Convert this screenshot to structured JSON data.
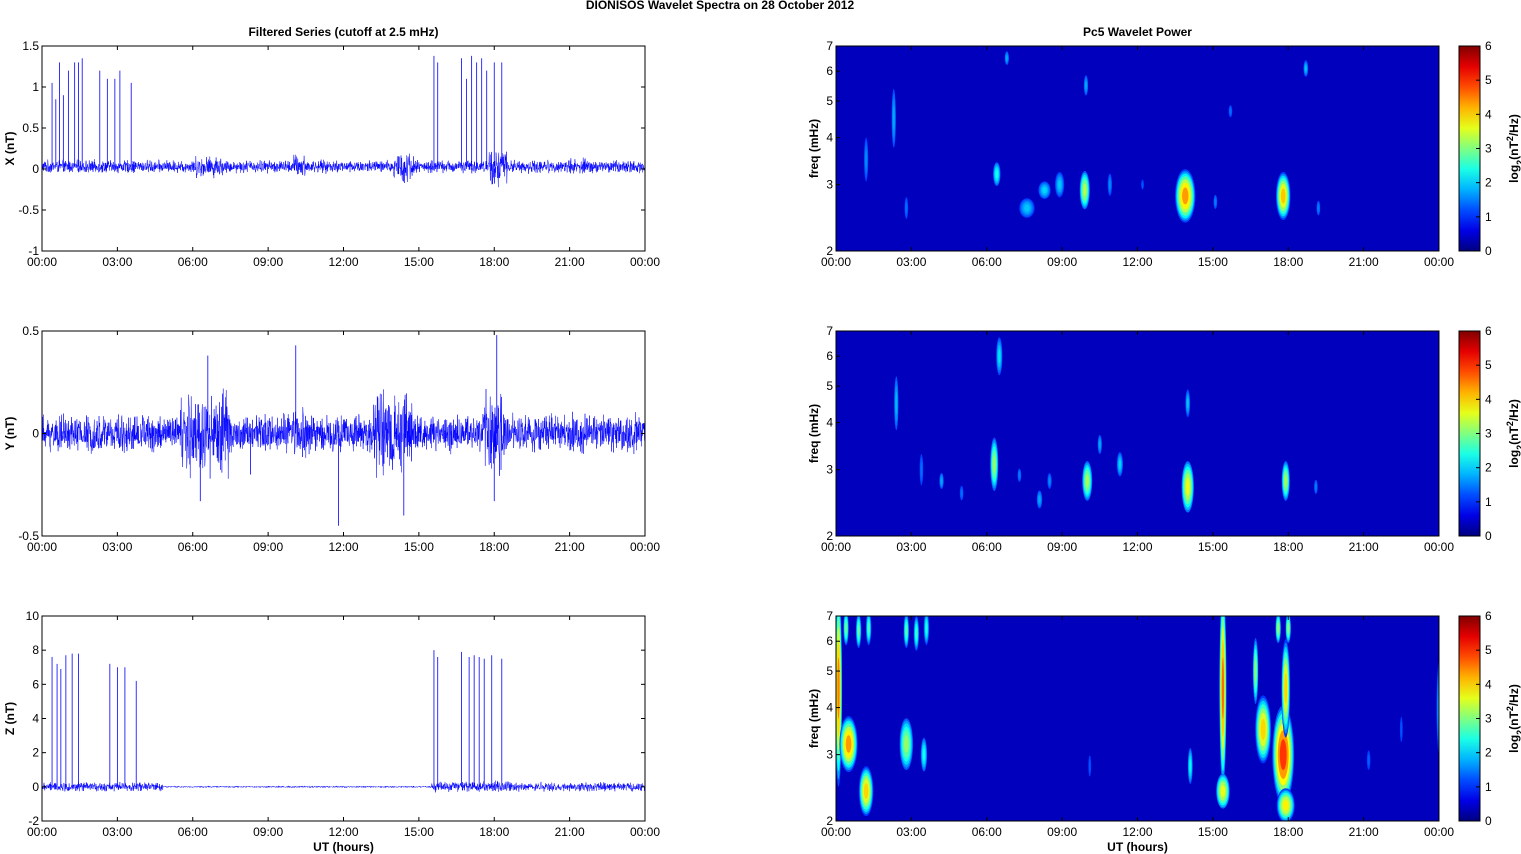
{
  "figure_title": "DIONISOS Wavelet Spectra on 28 October   2012",
  "colors": {
    "trace": "#0000ff",
    "frame": "#000000",
    "background": "#00008f"
  },
  "chart_data": [
    {
      "type": "line",
      "title": "Filtered Series (cutoff at 2.5 mHz)",
      "ylabel": "X (nT)",
      "xlabel": "",
      "x_ticks": [
        "00:00",
        "03:00",
        "06:00",
        "09:00",
        "12:00",
        "15:00",
        "18:00",
        "21:00",
        "00:00"
      ],
      "y_ticks": [
        "1.5",
        "1",
        "0.5",
        "0",
        "-0.5",
        "-1"
      ],
      "xlim_hours": [
        0,
        24
      ],
      "ylim": [
        -1,
        1.5
      ],
      "series": [
        {
          "color": "#0000ff",
          "baseline": 0.03,
          "noise_amplitude": 0.06,
          "bursts": [
            [
              6.0,
              7.2,
              0.1
            ],
            [
              10.0,
              10.5,
              0.12
            ],
            [
              14.0,
              14.8,
              0.15
            ],
            [
              17.8,
              18.5,
              0.18
            ],
            [
              21.0,
              21.7,
              0.08
            ]
          ],
          "spikes": [
            [
              0.4,
              1.05
            ],
            [
              0.55,
              0.85
            ],
            [
              0.7,
              1.3
            ],
            [
              0.85,
              0.9
            ],
            [
              1.05,
              1.2
            ],
            [
              1.3,
              1.3
            ],
            [
              1.45,
              1.3
            ],
            [
              1.6,
              1.35
            ],
            [
              2.3,
              1.2
            ],
            [
              2.6,
              1.1
            ],
            [
              2.9,
              1.1
            ],
            [
              3.1,
              1.2
            ],
            [
              3.55,
              1.05
            ],
            [
              15.6,
              1.38
            ],
            [
              15.75,
              1.3
            ],
            [
              16.7,
              1.35
            ],
            [
              16.9,
              1.1
            ],
            [
              17.1,
              1.38
            ],
            [
              17.3,
              1.3
            ],
            [
              17.5,
              1.35
            ],
            [
              17.7,
              1.2
            ],
            [
              18.0,
              1.3
            ],
            [
              18.3,
              1.3
            ]
          ]
        }
      ]
    },
    {
      "type": "line",
      "title": "",
      "ylabel": "Y (nT)",
      "xlabel": "",
      "x_ticks": [
        "00:00",
        "03:00",
        "06:00",
        "09:00",
        "12:00",
        "15:00",
        "18:00",
        "21:00",
        "00:00"
      ],
      "y_ticks": [
        "0.5",
        "0",
        "-0.5"
      ],
      "xlim_hours": [
        0,
        24
      ],
      "ylim": [
        -0.5,
        0.5
      ],
      "series": [
        {
          "color": "#0000ff",
          "baseline": 0.0,
          "noise_amplitude": 0.07,
          "bursts": [
            [
              5.5,
              7.5,
              0.16
            ],
            [
              10.0,
              10.8,
              0.12
            ],
            [
              13.2,
              14.8,
              0.15
            ],
            [
              17.6,
              18.4,
              0.16
            ],
            [
              21.0,
              21.8,
              0.08
            ]
          ],
          "spikes": [
            [
              6.3,
              -0.33
            ],
            [
              6.6,
              0.38
            ],
            [
              8.3,
              -0.2
            ],
            [
              10.1,
              0.43
            ],
            [
              11.8,
              -0.45
            ],
            [
              14.4,
              -0.4
            ],
            [
              18.1,
              0.48
            ],
            [
              18.0,
              -0.33
            ]
          ]
        }
      ]
    },
    {
      "type": "line",
      "title": "",
      "ylabel": "Z (nT)",
      "xlabel": "UT (hours)",
      "x_ticks": [
        "00:00",
        "03:00",
        "06:00",
        "09:00",
        "12:00",
        "15:00",
        "18:00",
        "21:00",
        "00:00"
      ],
      "y_ticks": [
        "10",
        "8",
        "6",
        "4",
        "2",
        "0",
        "-2"
      ],
      "xlim_hours": [
        0,
        24
      ],
      "ylim": [
        -2,
        10
      ],
      "series": [
        {
          "color": "#0000ff",
          "baseline": 0.0,
          "noise_amplitude": 0.2,
          "quiet_interval": [
            4.8,
            15.5
          ],
          "quiet_amplitude": 0.04,
          "bursts": [
            [
              15.5,
              18.6,
              0.25
            ]
          ],
          "spikes": [
            [
              0.4,
              7.6
            ],
            [
              0.6,
              7.2
            ],
            [
              0.75,
              6.9
            ],
            [
              0.95,
              7.7
            ],
            [
              1.2,
              7.8
            ],
            [
              1.45,
              7.8
            ],
            [
              2.7,
              7.2
            ],
            [
              3.0,
              7.0
            ],
            [
              3.3,
              7.0
            ],
            [
              3.75,
              6.2
            ],
            [
              15.6,
              8.0
            ],
            [
              15.75,
              7.6
            ],
            [
              16.7,
              7.9
            ],
            [
              17.0,
              7.6
            ],
            [
              17.2,
              7.7
            ],
            [
              17.4,
              7.6
            ],
            [
              17.6,
              7.5
            ],
            [
              17.9,
              7.7
            ],
            [
              18.3,
              7.5
            ]
          ]
        }
      ]
    },
    {
      "type": "heatmap",
      "title": "Pc5 Wavelet Power",
      "ylabel": "freq (mHz)",
      "xlabel": "",
      "x_ticks": [
        "00:00",
        "03:00",
        "06:00",
        "09:00",
        "12:00",
        "15:00",
        "18:00",
        "21:00",
        "00:00"
      ],
      "y_ticks": [
        "7",
        "6",
        "5",
        "4",
        "3",
        "2"
      ],
      "xlim_hours": [
        0,
        24
      ],
      "ylim_mHz": [
        2,
        7
      ],
      "y_scale": "log",
      "colorbar": {
        "label": "log2(nT2/Hz)",
        "ticks": [
          "6",
          "5",
          "4",
          "3",
          "2",
          "1",
          "0"
        ],
        "range": [
          0,
          6
        ],
        "colormap": "jet"
      },
      "blobs": [
        [
          1.2,
          3.5,
          0.07,
          0.7,
          1.4
        ],
        [
          2.3,
          4.5,
          0.07,
          1.2,
          1.6
        ],
        [
          2.8,
          2.6,
          0.06,
          0.3,
          1.2
        ],
        [
          6.4,
          3.2,
          0.12,
          0.3,
          2.3
        ],
        [
          6.8,
          6.5,
          0.06,
          0.4,
          1.6
        ],
        [
          7.6,
          2.6,
          0.25,
          0.2,
          1.8
        ],
        [
          8.3,
          2.9,
          0.2,
          0.2,
          1.9
        ],
        [
          8.9,
          3.0,
          0.15,
          0.3,
          1.8
        ],
        [
          9.9,
          2.9,
          0.15,
          0.4,
          3.4
        ],
        [
          9.95,
          5.5,
          0.06,
          0.5,
          1.6
        ],
        [
          10.9,
          3.0,
          0.08,
          0.3,
          1.4
        ],
        [
          12.2,
          3.0,
          0.06,
          0.2,
          1.0
        ],
        [
          13.9,
          2.8,
          0.28,
          0.5,
          4.6
        ],
        [
          15.1,
          2.7,
          0.07,
          0.2,
          1.3
        ],
        [
          15.7,
          4.7,
          0.05,
          0.3,
          1.2
        ],
        [
          17.8,
          2.8,
          0.2,
          0.45,
          4.3
        ],
        [
          18.7,
          6.1,
          0.07,
          0.4,
          1.8
        ],
        [
          19.2,
          2.6,
          0.06,
          0.2,
          1.3
        ]
      ]
    },
    {
      "type": "heatmap",
      "title": "",
      "ylabel": "freq (mHz)",
      "xlabel": "",
      "x_ticks": [
        "00:00",
        "03:00",
        "06:00",
        "09:00",
        "12:00",
        "15:00",
        "18:00",
        "21:00",
        "00:00"
      ],
      "y_ticks": [
        "7",
        "6",
        "5",
        "4",
        "3",
        "2"
      ],
      "xlim_hours": [
        0,
        24
      ],
      "ylim_mHz": [
        2,
        7
      ],
      "y_scale": "log",
      "colorbar": {
        "label": "log2(nT2/Hz)",
        "ticks": [
          "6",
          "5",
          "4",
          "3",
          "2",
          "1",
          "0"
        ],
        "range": [
          0,
          6
        ],
        "colormap": "jet"
      },
      "blobs": [
        [
          2.4,
          4.5,
          0.07,
          1.1,
          1.7
        ],
        [
          3.4,
          3.0,
          0.06,
          0.5,
          1.2
        ],
        [
          4.2,
          2.8,
          0.08,
          0.2,
          1.6
        ],
        [
          5.0,
          2.6,
          0.06,
          0.2,
          1.2
        ],
        [
          6.3,
          3.1,
          0.12,
          0.6,
          3.2
        ],
        [
          6.5,
          6.0,
          0.1,
          0.9,
          2.0
        ],
        [
          7.3,
          2.9,
          0.06,
          0.2,
          1.3
        ],
        [
          8.1,
          2.5,
          0.1,
          0.2,
          1.6
        ],
        [
          8.5,
          2.8,
          0.08,
          0.2,
          1.4
        ],
        [
          10.0,
          2.8,
          0.15,
          0.4,
          3.3
        ],
        [
          10.5,
          3.5,
          0.07,
          0.3,
          1.6
        ],
        [
          11.3,
          3.1,
          0.1,
          0.3,
          1.9
        ],
        [
          14.0,
          2.7,
          0.18,
          0.5,
          3.8
        ],
        [
          14.0,
          4.5,
          0.06,
          0.5,
          1.8
        ],
        [
          17.9,
          2.8,
          0.12,
          0.4,
          3.3
        ],
        [
          19.1,
          2.7,
          0.06,
          0.2,
          1.3
        ]
      ]
    },
    {
      "type": "heatmap",
      "title": "",
      "ylabel": "freq (mHz)",
      "xlabel": "UT (hours)",
      "x_ticks": [
        "00:00",
        "03:00",
        "06:00",
        "09:00",
        "12:00",
        "15:00",
        "18:00",
        "21:00",
        "00:00"
      ],
      "y_ticks": [
        "7",
        "6",
        "5",
        "4",
        "3",
        "2"
      ],
      "xlim_hours": [
        0,
        24
      ],
      "ylim_mHz": [
        2,
        7
      ],
      "y_scale": "log",
      "colorbar": {
        "label": "log2(nT2/Hz)",
        "ticks": [
          "6",
          "5",
          "4",
          "3",
          "2",
          "1",
          "0"
        ],
        "range": [
          0,
          6
        ],
        "colormap": "jet"
      },
      "blobs": [
        [
          0.1,
          4.5,
          0.1,
          3.0,
          4.8
        ],
        [
          0.5,
          3.2,
          0.25,
          0.6,
          4.6
        ],
        [
          1.2,
          2.4,
          0.2,
          0.4,
          4.2
        ],
        [
          0.4,
          6.5,
          0.07,
          0.8,
          3.0
        ],
        [
          0.9,
          6.4,
          0.07,
          0.8,
          2.9
        ],
        [
          1.3,
          6.5,
          0.07,
          0.8,
          2.7
        ],
        [
          2.8,
          3.2,
          0.2,
          0.6,
          3.2
        ],
        [
          2.8,
          6.4,
          0.07,
          0.8,
          2.8
        ],
        [
          3.2,
          6.3,
          0.07,
          0.8,
          2.6
        ],
        [
          3.5,
          3.0,
          0.1,
          0.4,
          2.3
        ],
        [
          3.6,
          6.5,
          0.06,
          0.8,
          2.4
        ],
        [
          10.1,
          2.8,
          0.05,
          0.4,
          1.0
        ],
        [
          14.1,
          2.8,
          0.08,
          0.4,
          2.2
        ],
        [
          15.4,
          4.5,
          0.1,
          3.0,
          4.9
        ],
        [
          15.4,
          2.4,
          0.2,
          0.3,
          3.8
        ],
        [
          16.7,
          5.0,
          0.08,
          1.2,
          3.2
        ],
        [
          17.0,
          3.5,
          0.22,
          0.8,
          4.2
        ],
        [
          17.8,
          3.0,
          0.3,
          1.0,
          5.3
        ],
        [
          17.9,
          4.5,
          0.12,
          1.5,
          4.2
        ],
        [
          17.6,
          6.5,
          0.08,
          0.7,
          3.3
        ],
        [
          18.0,
          6.5,
          0.08,
          0.7,
          3.2
        ],
        [
          17.9,
          2.2,
          0.25,
          0.25,
          4.0
        ],
        [
          21.2,
          2.9,
          0.05,
          0.3,
          1.1
        ],
        [
          22.5,
          3.5,
          0.05,
          0.6,
          1.0
        ],
        [
          24.0,
          4.0,
          0.08,
          1.5,
          1.8
        ]
      ]
    }
  ]
}
